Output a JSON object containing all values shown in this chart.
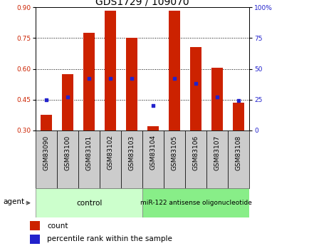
{
  "title": "GDS1729 / 109070",
  "samples": [
    "GSM83090",
    "GSM83100",
    "GSM83101",
    "GSM83102",
    "GSM83103",
    "GSM83104",
    "GSM83105",
    "GSM83106",
    "GSM83107",
    "GSM83108"
  ],
  "red_values": [
    0.375,
    0.575,
    0.775,
    0.885,
    0.75,
    0.32,
    0.885,
    0.705,
    0.605,
    0.435
  ],
  "blue_pct": [
    25,
    27,
    42,
    42,
    42,
    20,
    42,
    38,
    27,
    24
  ],
  "ylim_left": [
    0.3,
    0.9
  ],
  "ylim_right": [
    0,
    100
  ],
  "yticks_left": [
    0.3,
    0.45,
    0.6,
    0.75,
    0.9
  ],
  "yticks_right": [
    0,
    25,
    50,
    75,
    100
  ],
  "bar_color": "#cc2200",
  "dot_color": "#2222cc",
  "bar_width": 0.55,
  "control_label": "control",
  "treatment_label": "miR-122 antisense oligonucleotide",
  "agent_label": "agent",
  "legend_count": "count",
  "legend_pct": "percentile rank within the sample",
  "control_color": "#ccffcc",
  "treatment_color": "#88ee88",
  "label_area_color": "#cccccc",
  "grid_lines": [
    0.45,
    0.6,
    0.75
  ],
  "title_fontsize": 10,
  "tick_fontsize": 6.5,
  "label_fontsize": 7.5
}
